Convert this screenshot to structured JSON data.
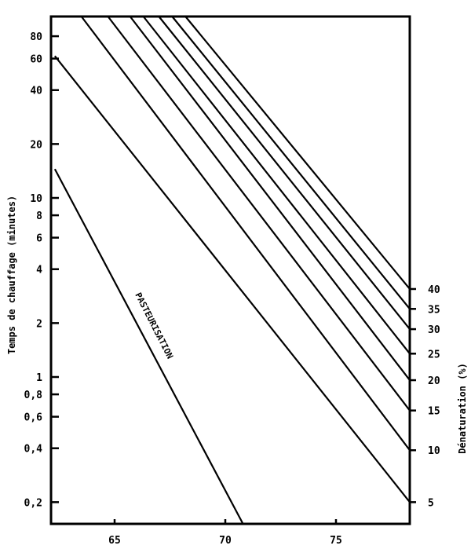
{
  "chart_data": {
    "type": "line",
    "title": "",
    "xlabel": "",
    "ylabel": "Temps de chauffage (minutes)",
    "y2label": "Dénaturation (%)",
    "xlim": [
      62.3,
      78.5
    ],
    "ylim": [
      0.14,
      110
    ],
    "yscale": "log",
    "grid": false,
    "x_ticks": [
      65,
      70,
      75
    ],
    "y_ticks": [
      {
        "value": 80,
        "label": "80"
      },
      {
        "value": 60,
        "label": "60"
      },
      {
        "value": 40,
        "label": "40"
      },
      {
        "value": 20,
        "label": "20"
      },
      {
        "value": 10,
        "label": "10"
      },
      {
        "value": 8,
        "label": "8"
      },
      {
        "value": 6,
        "label": "6"
      },
      {
        "value": 4,
        "label": "4"
      },
      {
        "value": 2,
        "label": "2"
      },
      {
        "value": 1,
        "label": "1"
      },
      {
        "value": 0.8,
        "label": "0,8"
      },
      {
        "value": 0.6,
        "label": "0,6"
      },
      {
        "value": 0.4,
        "label": "0,4"
      },
      {
        "value": 0.2,
        "label": "0,2"
      }
    ],
    "y2_ticks": [
      "40",
      "35",
      "30",
      "25",
      "20",
      "15",
      "10",
      "5"
    ],
    "annotations": [
      {
        "text": "PASTEURISATION",
        "x": 67.8,
        "y": 2.5,
        "rotation": 63
      }
    ],
    "series": [
      {
        "name": "PASTEURISATION",
        "x": [
          62.3,
          70.8
        ],
        "y": [
          14.5,
          0.14
        ]
      },
      {
        "name": "5",
        "x": [
          62.3,
          78.5
        ],
        "y": [
          62,
          0.2
        ]
      },
      {
        "name": "10",
        "x": [
          63.5,
          78.5
        ],
        "y": [
          110,
          0.39
        ]
      },
      {
        "name": "15",
        "x": [
          64.7,
          78.5
        ],
        "y": [
          110,
          0.65
        ]
      },
      {
        "name": "20",
        "x": [
          65.7,
          78.5
        ],
        "y": [
          110,
          0.96
        ]
      },
      {
        "name": "25",
        "x": [
          66.3,
          78.5
        ],
        "y": [
          110,
          1.35
        ]
      },
      {
        "name": "30",
        "x": [
          67.0,
          78.5
        ],
        "y": [
          110,
          1.85
        ]
      },
      {
        "name": "35",
        "x": [
          67.6,
          78.5
        ],
        "y": [
          110,
          2.4
        ]
      },
      {
        "name": "40",
        "x": [
          68.2,
          78.5
        ],
        "y": [
          110,
          3.1
        ]
      }
    ]
  },
  "axes": {
    "ylabel": "Temps de chauffage (minutes)",
    "y2label": "Dénaturation (%)"
  },
  "labels": {
    "pasteurisation": "PASTEURISATION"
  }
}
